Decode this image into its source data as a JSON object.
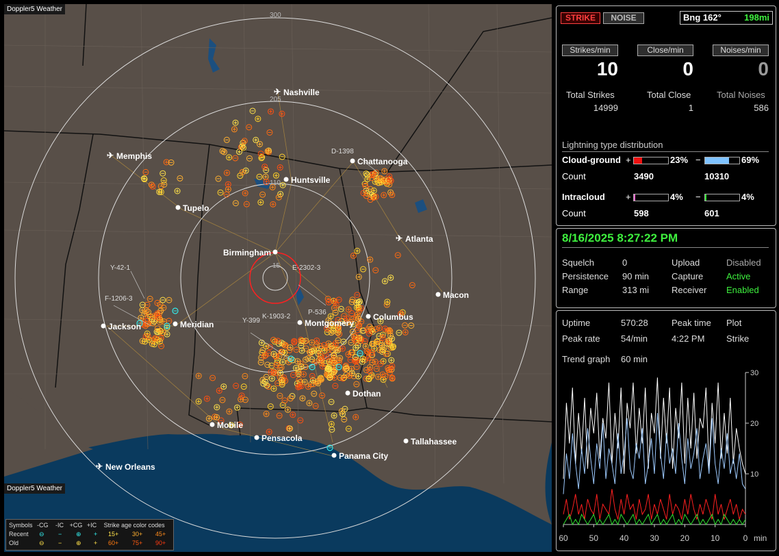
{
  "map": {
    "watermark_top": "Doppler5 Weather",
    "watermark_bottom": "Doppler5 Weather",
    "range_labels": [
      "300",
      "205",
      "110",
      "15"
    ],
    "cities": [
      {
        "name": "Nashville",
        "type": "airport"
      },
      {
        "name": "Memphis",
        "type": "airport"
      },
      {
        "name": "Chattanooga",
        "type": "dot"
      },
      {
        "name": "Huntsville",
        "type": "dot"
      },
      {
        "name": "Tupelo",
        "type": "dot"
      },
      {
        "name": "Atlanta",
        "type": "airport"
      },
      {
        "name": "Birmingham",
        "type": "dot"
      },
      {
        "name": "Macon",
        "type": "dot"
      },
      {
        "name": "Columbus",
        "type": "dot"
      },
      {
        "name": "Montgomery",
        "type": "dot"
      },
      {
        "name": "Meridian",
        "type": "dot"
      },
      {
        "name": "Jackson",
        "type": "dot"
      },
      {
        "name": "Dothan",
        "type": "dot"
      },
      {
        "name": "Mobile",
        "type": "dot"
      },
      {
        "name": "Pensacola",
        "type": "dot"
      },
      {
        "name": "Tallahassee",
        "type": "dot"
      },
      {
        "name": "Panama City",
        "type": "dot"
      },
      {
        "name": "New Orleans",
        "type": "airport"
      }
    ],
    "storm_labels": [
      "D-1398",
      "Y-42-1",
      "E-2302-3",
      "F-1206-3",
      "K-1903-2",
      "P-536",
      "Y-399"
    ],
    "legend": {
      "title_row": [
        "Symbols",
        "-CG",
        "-IC",
        "+CG",
        "+IC",
        "Strike age color codes"
      ],
      "recent_label": "Recent",
      "recent_ages": [
        "15+",
        "30+",
        "45+"
      ],
      "old_label": "Old",
      "old_ages": [
        "60+",
        "75+",
        "90+"
      ]
    }
  },
  "top": {
    "strike_btn": "STRIKE",
    "noise_btn": "NOISE",
    "bearing": "Bng 162°",
    "distance": "198mi",
    "strikes_min_label": "Strikes/min",
    "close_min_label": "Close/min",
    "noises_min_label": "Noises/min",
    "strikes_min": "10",
    "close_min": "0",
    "noises_min": "0",
    "total_strikes_label": "Total Strikes",
    "total_close_label": "Total Close",
    "total_noises_label": "Total Noises",
    "total_strikes": "14999",
    "total_close": "1",
    "total_noises": "586",
    "dist_title": "Lightning type distribution",
    "cg_label": "Cloud-ground",
    "cg_pos_pct": "23%",
    "cg_neg_pct": "69%",
    "count_label": "Count",
    "cg_pos_count": "3490",
    "cg_neg_count": "10310",
    "ic_label": "Intracloud",
    "ic_pos_pct": "4%",
    "ic_neg_pct": "4%",
    "ic_pos_count": "598",
    "ic_neg_count": "601",
    "plus": "+",
    "minus": "−",
    "cg_pos_fraction": 0.23,
    "cg_neg_fraction": 0.69,
    "ic_pos_fraction": 0.04,
    "ic_neg_fraction": 0.04
  },
  "status": {
    "datetime": "8/16/2025 8:27:22 PM",
    "squelch_label": "Squelch",
    "squelch": "0",
    "persistence_label": "Persistence",
    "persistence": "90 min",
    "range_label": "Range",
    "range": "313 mi",
    "upload_label": "Upload",
    "upload": "Disabled",
    "capture_label": "Capture",
    "capture": "Active",
    "receiver_label": "Receiver",
    "receiver": "Enabled"
  },
  "trend": {
    "uptime_label": "Uptime",
    "uptime": "570:28",
    "peak_time_label": "Peak time",
    "peak_time": "4:22 PM",
    "plot_label": "Plot",
    "plot": "Strike",
    "peak_rate_label": "Peak rate",
    "peak_rate": "54/min",
    "trend_label": "Trend graph",
    "trend_value": "60 min"
  },
  "chart_data": {
    "type": "line",
    "x": [
      60,
      59,
      58,
      57,
      56,
      55,
      54,
      53,
      52,
      51,
      50,
      49,
      48,
      47,
      46,
      45,
      44,
      43,
      42,
      41,
      40,
      39,
      38,
      37,
      36,
      35,
      34,
      33,
      32,
      31,
      30,
      29,
      28,
      27,
      26,
      25,
      24,
      23,
      22,
      21,
      20,
      19,
      18,
      17,
      16,
      15,
      14,
      13,
      12,
      11,
      10,
      9,
      8,
      7,
      6,
      5,
      4,
      3,
      2,
      1,
      0
    ],
    "xticks": [
      "60",
      "50",
      "40",
      "30",
      "20",
      "10",
      "0",
      "min"
    ],
    "yticks": [
      "30",
      "20",
      "10"
    ],
    "ylim": [
      0,
      30
    ],
    "series": [
      {
        "color": "#ffffff",
        "values": [
          9,
          24,
          16,
          27,
          12,
          22,
          14,
          25,
          11,
          23,
          18,
          26,
          13,
          21,
          17,
          28,
          12,
          22,
          15,
          27,
          10,
          24,
          19,
          28,
          14,
          23,
          16,
          27,
          11,
          22,
          18,
          29,
          13,
          25,
          16,
          27,
          11,
          23,
          17,
          28,
          12,
          25,
          15,
          26,
          13,
          21,
          19,
          27,
          11,
          24,
          16,
          28,
          13,
          22,
          14,
          25,
          12,
          19,
          15,
          12,
          10
        ]
      },
      {
        "color": "#9ecbff",
        "values": [
          6,
          14,
          9,
          18,
          12,
          7,
          15,
          10,
          19,
          13,
          8,
          16,
          11,
          20,
          9,
          15,
          12,
          8,
          18,
          10,
          14,
          21,
          11,
          9,
          16,
          13,
          19,
          8,
          12,
          17,
          10,
          22,
          14,
          9,
          18,
          12,
          15,
          10,
          20,
          13,
          8,
          17,
          11,
          14,
          19,
          9,
          13,
          16,
          10,
          21,
          12,
          8,
          15,
          11,
          18,
          10,
          13,
          9,
          14,
          8,
          7
        ]
      },
      {
        "color": "#ff2020",
        "values": [
          2,
          5,
          1,
          3,
          6,
          2,
          4,
          1,
          5,
          3,
          2,
          6,
          1,
          4,
          3,
          2,
          7,
          3,
          1,
          5,
          2,
          6,
          3,
          4,
          1,
          5,
          2,
          3,
          6,
          1,
          4,
          2,
          5,
          3,
          1,
          6,
          2,
          4,
          3,
          1,
          5,
          2,
          6,
          3,
          1,
          4,
          2,
          5,
          3,
          1,
          6,
          2,
          4,
          1,
          3,
          5,
          2,
          4,
          1,
          3,
          2
        ]
      },
      {
        "color": "#30e030",
        "values": [
          0,
          1,
          2,
          0,
          1,
          0,
          2,
          1,
          0,
          1,
          2,
          0,
          1,
          0,
          1,
          2,
          0,
          1,
          0,
          2,
          1,
          0,
          1,
          2,
          0,
          1,
          0,
          1,
          2,
          0,
          1,
          2,
          0,
          1,
          0,
          1,
          2,
          0,
          1,
          0,
          2,
          1,
          0,
          1,
          2,
          0,
          1,
          0,
          1,
          2,
          0,
          1,
          0,
          2,
          1,
          0,
          1,
          0,
          1,
          0,
          1
        ]
      }
    ]
  }
}
